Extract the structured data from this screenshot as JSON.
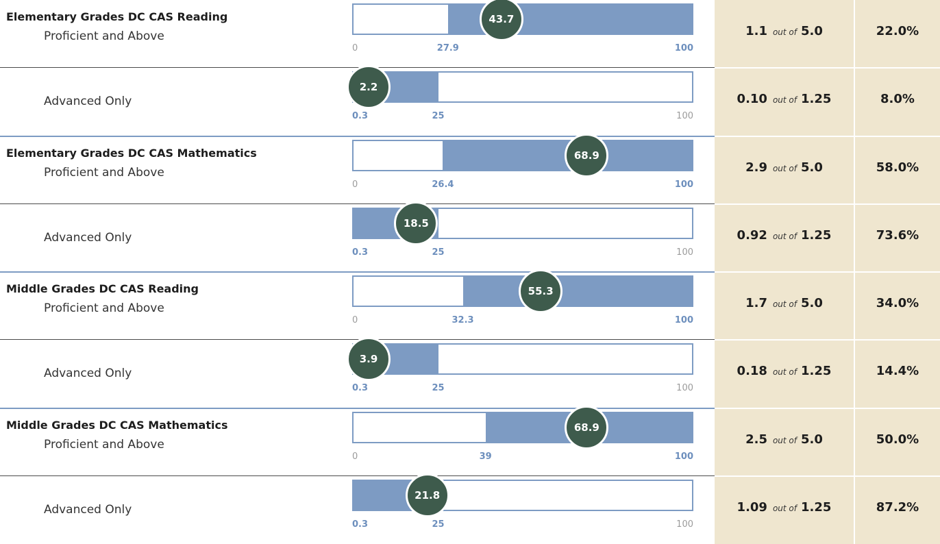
{
  "chart_data": {
    "type": "bar",
    "out_of_label": "out of",
    "groups": [
      {
        "title": "Elementary Grades DC CAS Reading",
        "rows": [
          {
            "label": "Proficient and Above",
            "floor": 27.9,
            "value": 43.7,
            "scale_min": "0",
            "floor_label": "27.9",
            "scale_max": "100",
            "points": "1.1",
            "max_points": "5.0",
            "percent": "22.0%"
          },
          {
            "label": "Advanced Only",
            "floor": 0.3,
            "target": 25,
            "value": 2.2,
            "floor_label": "0.3",
            "target_label": "25",
            "scale_max": "100",
            "points": "0.10",
            "max_points": "1.25",
            "percent": "8.0%"
          }
        ]
      },
      {
        "title": "Elementary Grades DC CAS Mathematics",
        "rows": [
          {
            "label": "Proficient and Above",
            "floor": 26.4,
            "value": 68.9,
            "scale_min": "0",
            "floor_label": "26.4",
            "scale_max": "100",
            "points": "2.9",
            "max_points": "5.0",
            "percent": "58.0%"
          },
          {
            "label": "Advanced Only",
            "floor": 0.3,
            "target": 25,
            "value": 18.5,
            "floor_label": "0.3",
            "target_label": "25",
            "scale_max": "100",
            "points": "0.92",
            "max_points": "1.25",
            "percent": "73.6%"
          }
        ]
      },
      {
        "title": "Middle Grades DC CAS Reading",
        "rows": [
          {
            "label": "Proficient and Above",
            "floor": 32.3,
            "value": 55.3,
            "scale_min": "0",
            "floor_label": "32.3",
            "scale_max": "100",
            "points": "1.7",
            "max_points": "5.0",
            "percent": "34.0%"
          },
          {
            "label": "Advanced Only",
            "floor": 0.3,
            "target": 25,
            "value": 3.9,
            "floor_label": "0.3",
            "target_label": "25",
            "scale_max": "100",
            "points": "0.18",
            "max_points": "1.25",
            "percent": "14.4%"
          }
        ]
      },
      {
        "title": "Middle Grades DC CAS Mathematics",
        "rows": [
          {
            "label": "Proficient and Above",
            "floor": 39,
            "value": 68.9,
            "scale_min": "0",
            "floor_label": "39",
            "scale_max": "100",
            "points": "2.5",
            "max_points": "5.0",
            "percent": "50.0%"
          },
          {
            "label": "Advanced Only",
            "floor": 0.3,
            "target": 25,
            "value": 21.8,
            "floor_label": "0.3",
            "target_label": "25",
            "scale_max": "100",
            "points": "1.09",
            "max_points": "1.25",
            "percent": "87.2%"
          }
        ]
      }
    ],
    "colors": {
      "bar": "#7d9bc3",
      "bubble": "#3e5b4c",
      "score_panel": "#efe6cf",
      "divider": "#7d9bc3"
    }
  }
}
